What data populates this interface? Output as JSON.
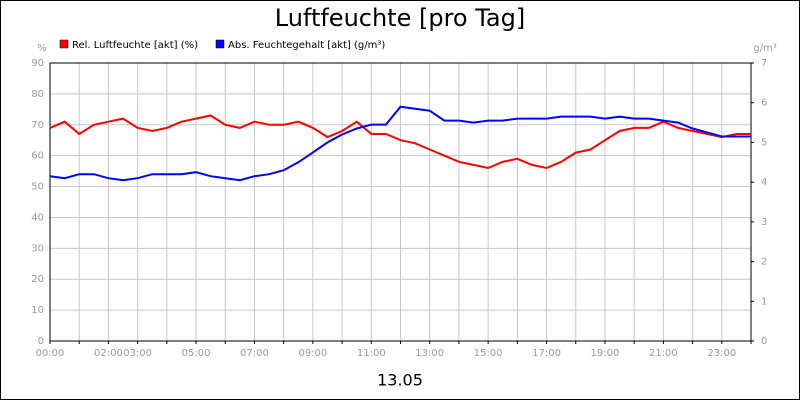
{
  "chart_data": {
    "type": "line",
    "title": "Luftfeuchte [pro Tag]",
    "x_label": "13.05",
    "y_label": "%",
    "y2_label": "g/m³",
    "x": [
      0,
      0.5,
      1,
      1.5,
      2,
      2.5,
      3,
      3.5,
      4,
      4.5,
      5,
      5.5,
      6,
      6.5,
      7,
      7.5,
      8,
      8.5,
      9,
      9.5,
      10,
      10.5,
      11,
      11.5,
      12,
      12.5,
      13,
      13.5,
      14,
      14.5,
      15,
      15.5,
      16,
      16.5,
      17,
      17.5,
      18,
      18.5,
      19,
      19.5,
      20,
      20.5,
      21,
      21.5,
      22,
      22.5,
      23,
      23.5,
      24
    ],
    "series": [
      {
        "name": "Rel. Luftfeuchte [akt] (%)",
        "color": "#ff0000",
        "axis": "y",
        "values": [
          69,
          71,
          67,
          70,
          71,
          72,
          69,
          68,
          69,
          71,
          72,
          73,
          70,
          69,
          71,
          70,
          70,
          71,
          69,
          66,
          68,
          71,
          67,
          67,
          65,
          64,
          62,
          60,
          58,
          57,
          56,
          58,
          59,
          57,
          56,
          58,
          61,
          62,
          65,
          68,
          69,
          69,
          71,
          69,
          68,
          67,
          66,
          67,
          67
        ]
      },
      {
        "name": "Abs. Feuchtegehalt [akt] (g/m³)",
        "color": "#0000ff",
        "axis": "y2",
        "values": [
          4.15,
          4.1,
          4.2,
          4.2,
          4.1,
          4.05,
          4.1,
          4.2,
          4.2,
          4.2,
          4.25,
          4.15,
          4.1,
          4.05,
          4.15,
          4.2,
          4.3,
          4.5,
          4.75,
          5.0,
          5.2,
          5.35,
          5.45,
          5.45,
          5.9,
          5.85,
          5.8,
          5.55,
          5.55,
          5.5,
          5.55,
          5.55,
          5.6,
          5.6,
          5.6,
          5.65,
          5.65,
          5.65,
          5.6,
          5.65,
          5.6,
          5.6,
          5.55,
          5.5,
          5.35,
          5.25,
          5.15,
          5.15,
          5.15
        ]
      }
    ],
    "xlim": [
      0,
      24
    ],
    "xticks": [
      {
        "value": 0,
        "label": "00:00"
      },
      {
        "value": 1,
        "label": null
      },
      {
        "value": 2,
        "label": "02:00"
      },
      {
        "value": 3,
        "label": "03:00"
      },
      {
        "value": 4,
        "label": null
      },
      {
        "value": 5,
        "label": "05:00"
      },
      {
        "value": 6,
        "label": null
      },
      {
        "value": 7,
        "label": "07:00"
      },
      {
        "value": 8,
        "label": null
      },
      {
        "value": 9,
        "label": "09:00"
      },
      {
        "value": 10,
        "label": null
      },
      {
        "value": 11,
        "label": "11:00"
      },
      {
        "value": 12,
        "label": null
      },
      {
        "value": 13,
        "label": "13:00"
      },
      {
        "value": 14,
        "label": null
      },
      {
        "value": 15,
        "label": "15:00"
      },
      {
        "value": 16,
        "label": null
      },
      {
        "value": 17,
        "label": "17:00"
      },
      {
        "value": 18,
        "label": null
      },
      {
        "value": 19,
        "label": "19:00"
      },
      {
        "value": 20,
        "label": null
      },
      {
        "value": 21,
        "label": "21:00"
      },
      {
        "value": 22,
        "label": null
      },
      {
        "value": 23,
        "label": "23:00"
      },
      {
        "value": 24,
        "label": null
      }
    ],
    "ylim": [
      0,
      90
    ],
    "yticks": [
      0,
      10,
      20,
      30,
      40,
      50,
      60,
      70,
      80,
      90
    ],
    "y2lim": [
      0,
      7
    ],
    "y2ticks": [
      0,
      1,
      2,
      3,
      4,
      5,
      6,
      7
    ],
    "grid": true
  }
}
